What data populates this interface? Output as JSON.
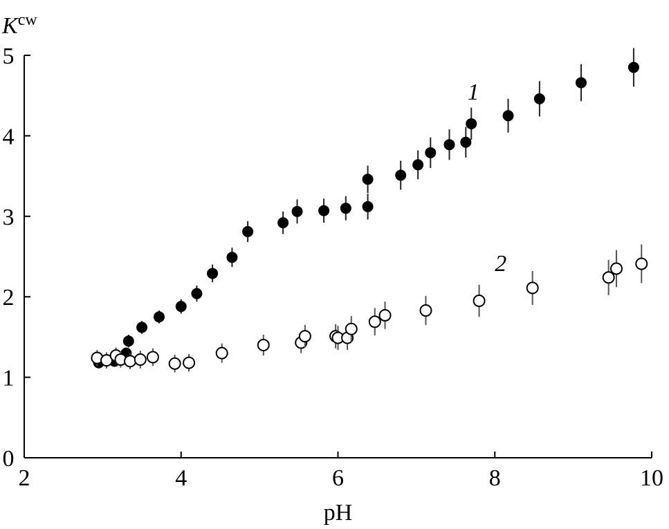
{
  "chart_data": {
    "type": "scatter",
    "title": "",
    "xlabel": "pH",
    "ylabel": "K",
    "ylabel_superscript": "cw",
    "xlim": [
      2,
      10
    ],
    "ylim": [
      0,
      5
    ],
    "xticks": [
      2,
      4,
      6,
      8,
      10
    ],
    "yticks": [
      0,
      1,
      2,
      3,
      4,
      5
    ],
    "grid": false,
    "series": [
      {
        "name": "1",
        "marker": "filled-circle",
        "color": "#000000",
        "label_at": [
          7.65,
          4.45
        ],
        "points": [
          {
            "x": 2.95,
            "y": 1.18,
            "err": 0.07
          },
          {
            "x": 3.15,
            "y": 1.2,
            "err": 0.07
          },
          {
            "x": 3.25,
            "y": 1.25,
            "err": 0.07
          },
          {
            "x": 3.3,
            "y": 1.3,
            "err": 0.07
          },
          {
            "x": 3.33,
            "y": 1.45,
            "err": 0.08
          },
          {
            "x": 3.5,
            "y": 1.62,
            "err": 0.08
          },
          {
            "x": 3.72,
            "y": 1.75,
            "err": 0.08
          },
          {
            "x": 4.0,
            "y": 1.88,
            "err": 0.09
          },
          {
            "x": 4.2,
            "y": 2.04,
            "err": 0.1
          },
          {
            "x": 4.4,
            "y": 2.29,
            "err": 0.11
          },
          {
            "x": 4.65,
            "y": 2.49,
            "err": 0.12
          },
          {
            "x": 4.85,
            "y": 2.81,
            "err": 0.13
          },
          {
            "x": 5.3,
            "y": 2.92,
            "err": 0.14
          },
          {
            "x": 5.48,
            "y": 3.06,
            "err": 0.15
          },
          {
            "x": 5.82,
            "y": 3.07,
            "err": 0.15
          },
          {
            "x": 6.1,
            "y": 3.1,
            "err": 0.15
          },
          {
            "x": 6.38,
            "y": 3.12,
            "err": 0.16
          },
          {
            "x": 6.38,
            "y": 3.46,
            "err": 0.17
          },
          {
            "x": 6.8,
            "y": 3.51,
            "err": 0.18
          },
          {
            "x": 7.02,
            "y": 3.64,
            "err": 0.18
          },
          {
            "x": 7.18,
            "y": 3.79,
            "err": 0.19
          },
          {
            "x": 7.42,
            "y": 3.89,
            "err": 0.19
          },
          {
            "x": 7.63,
            "y": 3.92,
            "err": 0.19
          },
          {
            "x": 7.7,
            "y": 4.15,
            "err": 0.2
          },
          {
            "x": 8.17,
            "y": 4.25,
            "err": 0.21
          },
          {
            "x": 8.57,
            "y": 4.46,
            "err": 0.22
          },
          {
            "x": 9.1,
            "y": 4.66,
            "err": 0.23
          },
          {
            "x": 9.77,
            "y": 4.85,
            "err": 0.24
          }
        ]
      },
      {
        "name": "2",
        "marker": "open-circle",
        "color": "#000000",
        "label_at": [
          8.0,
          2.32
        ],
        "points": [
          {
            "x": 2.93,
            "y": 1.24,
            "err": 0.1
          },
          {
            "x": 3.05,
            "y": 1.21,
            "err": 0.1
          },
          {
            "x": 3.17,
            "y": 1.27,
            "err": 0.1
          },
          {
            "x": 3.23,
            "y": 1.22,
            "err": 0.1
          },
          {
            "x": 3.35,
            "y": 1.2,
            "err": 0.1
          },
          {
            "x": 3.48,
            "y": 1.22,
            "err": 0.11
          },
          {
            "x": 3.64,
            "y": 1.25,
            "err": 0.11
          },
          {
            "x": 3.92,
            "y": 1.17,
            "err": 0.11
          },
          {
            "x": 4.1,
            "y": 1.18,
            "err": 0.11
          },
          {
            "x": 4.52,
            "y": 1.3,
            "err": 0.12
          },
          {
            "x": 5.05,
            "y": 1.4,
            "err": 0.13
          },
          {
            "x": 5.53,
            "y": 1.43,
            "err": 0.13
          },
          {
            "x": 5.58,
            "y": 1.51,
            "err": 0.14
          },
          {
            "x": 5.97,
            "y": 1.51,
            "err": 0.15
          },
          {
            "x": 6.0,
            "y": 1.49,
            "err": 0.15
          },
          {
            "x": 6.12,
            "y": 1.49,
            "err": 0.15
          },
          {
            "x": 6.17,
            "y": 1.6,
            "err": 0.16
          },
          {
            "x": 6.47,
            "y": 1.69,
            "err": 0.17
          },
          {
            "x": 6.6,
            "y": 1.77,
            "err": 0.17
          },
          {
            "x": 7.12,
            "y": 1.83,
            "err": 0.18
          },
          {
            "x": 7.8,
            "y": 1.95,
            "err": 0.2
          },
          {
            "x": 8.48,
            "y": 2.11,
            "err": 0.21
          },
          {
            "x": 9.45,
            "y": 2.24,
            "err": 0.22
          },
          {
            "x": 9.55,
            "y": 2.35,
            "err": 0.23
          },
          {
            "x": 9.87,
            "y": 2.41,
            "err": 0.24
          }
        ]
      }
    ]
  }
}
